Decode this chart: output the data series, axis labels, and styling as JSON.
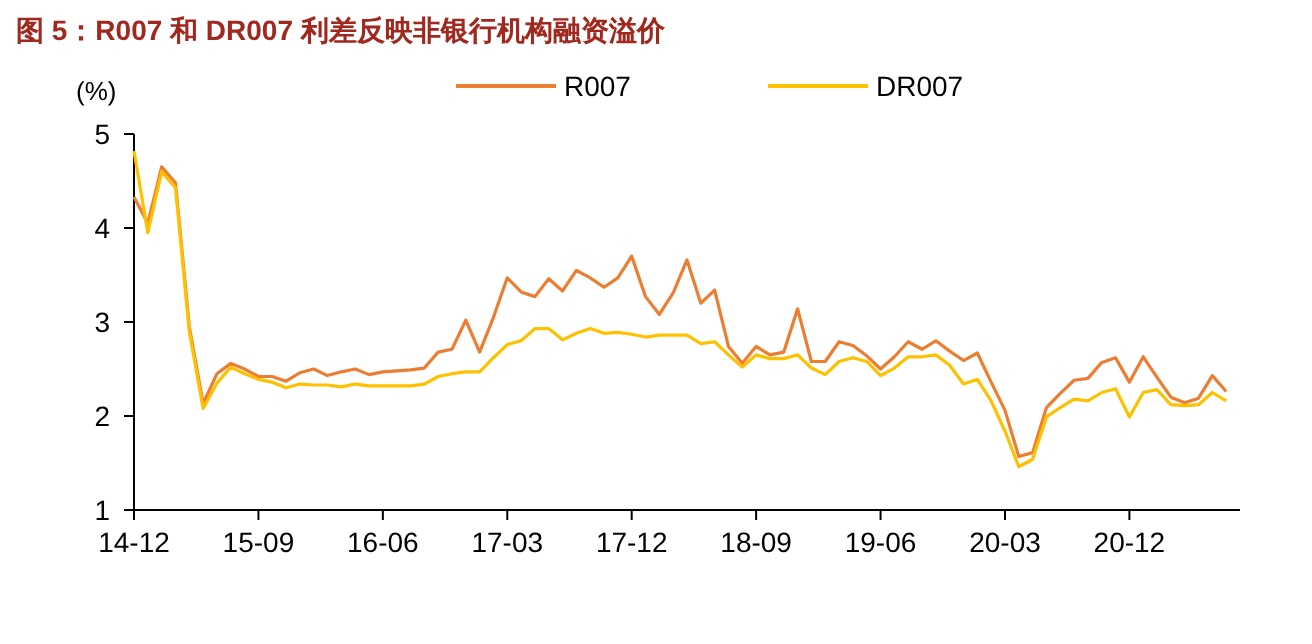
{
  "chart_data": {
    "type": "line",
    "title": "图 5：R007 和 DR007 利差反映非银行机构融资溢价",
    "ylabel": "(%)",
    "categories": [
      "14-12",
      null,
      null,
      null,
      null,
      null,
      null,
      null,
      null,
      "15-09",
      null,
      null,
      null,
      null,
      null,
      null,
      null,
      null,
      "16-06",
      null,
      null,
      null,
      null,
      null,
      null,
      null,
      null,
      "17-03",
      null,
      null,
      null,
      null,
      null,
      null,
      null,
      null,
      "17-12",
      null,
      null,
      null,
      null,
      null,
      null,
      null,
      null,
      "18-09",
      null,
      null,
      null,
      null,
      null,
      null,
      null,
      null,
      "19-06",
      null,
      null,
      null,
      null,
      null,
      null,
      null,
      null,
      "20-03",
      null,
      null,
      null,
      null,
      null,
      null,
      null,
      null,
      "20-12",
      null,
      null,
      null,
      null,
      null,
      null,
      null
    ],
    "series": [
      {
        "name": "R007",
        "color": "#ed7d31",
        "values": [
          4.33,
          4.05,
          4.65,
          4.48,
          2.95,
          2.13,
          2.45,
          2.56,
          2.5,
          2.42,
          2.42,
          2.37,
          2.46,
          2.5,
          2.43,
          2.47,
          2.5,
          2.44,
          2.47,
          2.48,
          2.49,
          2.51,
          2.68,
          2.71,
          3.02,
          2.68,
          3.05,
          3.47,
          3.32,
          3.27,
          3.46,
          3.33,
          3.55,
          3.47,
          3.37,
          3.47,
          3.7,
          3.27,
          3.08,
          3.31,
          3.66,
          3.2,
          3.34,
          2.74,
          2.56,
          2.74,
          2.65,
          2.68,
          3.14,
          2.58,
          2.58,
          2.79,
          2.75,
          2.64,
          2.5,
          2.63,
          2.79,
          2.71,
          2.8,
          2.69,
          2.59,
          2.67,
          2.36,
          2.06,
          1.57,
          1.61,
          2.09,
          2.24,
          2.38,
          2.4,
          2.57,
          2.62,
          2.36,
          2.63,
          2.41,
          2.2,
          2.14,
          2.19,
          2.43,
          2.26
        ]
      },
      {
        "name": "DR007",
        "color": "#ffc000",
        "values": [
          4.82,
          3.95,
          4.6,
          4.43,
          2.9,
          2.08,
          2.35,
          2.52,
          2.45,
          2.39,
          2.36,
          2.3,
          2.34,
          2.33,
          2.33,
          2.31,
          2.34,
          2.32,
          2.32,
          2.32,
          2.32,
          2.34,
          2.42,
          2.45,
          2.47,
          2.47,
          2.62,
          2.76,
          2.8,
          2.93,
          2.93,
          2.81,
          2.88,
          2.93,
          2.88,
          2.89,
          2.87,
          2.84,
          2.86,
          2.86,
          2.86,
          2.77,
          2.79,
          2.65,
          2.52,
          2.65,
          2.61,
          2.61,
          2.65,
          2.51,
          2.44,
          2.58,
          2.62,
          2.58,
          2.43,
          2.51,
          2.63,
          2.63,
          2.65,
          2.54,
          2.34,
          2.39,
          2.16,
          1.84,
          1.46,
          1.54,
          1.99,
          2.09,
          2.18,
          2.16,
          2.25,
          2.29,
          1.99,
          2.25,
          2.28,
          2.12,
          2.11,
          2.12,
          2.25,
          2.16
        ]
      }
    ],
    "ylim": [
      1,
      5
    ],
    "yticks": [
      1,
      2,
      3,
      4,
      5
    ],
    "legend": "top"
  }
}
